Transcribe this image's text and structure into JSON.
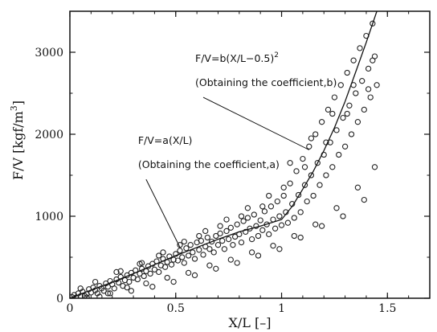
{
  "chart_data": {
    "type": "scatter",
    "title": "",
    "xlabel": "X/L  [–]",
    "ylabel": "F/V  [kgf/m",
    "ylabel_sup": "3",
    "ylabel_close": "]",
    "xlim": [
      0,
      1.7
    ],
    "ylim": [
      0,
      3500
    ],
    "x_ticks": [
      0,
      0.5,
      1,
      1.5
    ],
    "x_tick_labels": [
      "0",
      "0.5",
      "1",
      "1.5"
    ],
    "y_ticks": [
      0,
      1000,
      2000,
      3000
    ],
    "y_tick_labels": [
      "0",
      "1000",
      "2000",
      "3000"
    ],
    "grid": false,
    "marker": "open-circle",
    "annotations": [
      {
        "line1": "F/V=b(X/L−0.5)",
        "line1_sup": "2",
        "line2": "(Obtaining the coefficient,b)",
        "arrow_from": [
          0.63,
          2450
        ],
        "arrow_to": [
          1.13,
          1810
        ]
      },
      {
        "line1": "F/V=a(X/L)",
        "line2": "(Obtaining the coefficient,a)",
        "arrow_from": [
          0.36,
          1450
        ],
        "arrow_to": [
          0.52,
          620
        ]
      }
    ],
    "series": [
      {
        "type": "line",
        "points": [
          [
            0,
            0
          ],
          [
            0.1,
            100
          ],
          [
            0.2,
            195
          ],
          [
            0.3,
            300
          ],
          [
            0.4,
            410
          ],
          [
            0.5,
            520
          ],
          [
            0.6,
            620
          ],
          [
            0.7,
            720
          ],
          [
            0.8,
            810
          ],
          [
            0.9,
            880
          ],
          [
            1.0,
            960
          ],
          [
            1.05,
            1120
          ],
          [
            1.1,
            1330
          ],
          [
            1.15,
            1550
          ],
          [
            1.2,
            1800
          ],
          [
            1.25,
            2080
          ],
          [
            1.3,
            2400
          ],
          [
            1.35,
            2760
          ],
          [
            1.4,
            3120
          ],
          [
            1.45,
            3500
          ]
        ]
      },
      {
        "type": "scatter",
        "points": [
          [
            0.01,
            15
          ],
          [
            0.02,
            40
          ],
          [
            0.03,
            10
          ],
          [
            0.04,
            60
          ],
          [
            0.05,
            25
          ],
          [
            0.06,
            80
          ],
          [
            0.07,
            30
          ],
          [
            0.08,
            50
          ],
          [
            0.09,
            110
          ],
          [
            0.1,
            70
          ],
          [
            0.11,
            130
          ],
          [
            0.12,
            95
          ],
          [
            0.13,
            60
          ],
          [
            0.14,
            150
          ],
          [
            0.15,
            120
          ],
          [
            0.16,
            90
          ],
          [
            0.17,
            180
          ],
          [
            0.18,
            140
          ],
          [
            0.19,
            210
          ],
          [
            0.2,
            170
          ],
          [
            0.21,
            120
          ],
          [
            0.22,
            230
          ],
          [
            0.23,
            190
          ],
          [
            0.24,
            260
          ],
          [
            0.25,
            150
          ],
          [
            0.26,
            220
          ],
          [
            0.27,
            280
          ],
          [
            0.28,
            200
          ],
          [
            0.29,
            310
          ],
          [
            0.3,
            250
          ],
          [
            0.31,
            340
          ],
          [
            0.32,
            230
          ],
          [
            0.33,
            300
          ],
          [
            0.34,
            360
          ],
          [
            0.35,
            270
          ],
          [
            0.36,
            330
          ],
          [
            0.37,
            390
          ],
          [
            0.38,
            300
          ],
          [
            0.39,
            420
          ],
          [
            0.4,
            350
          ],
          [
            0.41,
            450
          ],
          [
            0.42,
            320
          ],
          [
            0.43,
            400
          ],
          [
            0.44,
            480
          ],
          [
            0.45,
            380
          ],
          [
            0.46,
            440
          ],
          [
            0.47,
            510
          ],
          [
            0.48,
            410
          ],
          [
            0.49,
            470
          ],
          [
            0.5,
            540
          ],
          [
            0.51,
            460
          ],
          [
            0.52,
            580
          ],
          [
            0.53,
            500
          ],
          [
            0.54,
            430
          ],
          [
            0.55,
            610
          ],
          [
            0.56,
            520
          ],
          [
            0.57,
            650
          ],
          [
            0.58,
            560
          ],
          [
            0.59,
            480
          ],
          [
            0.6,
            680
          ],
          [
            0.61,
            590
          ],
          [
            0.62,
            700
          ],
          [
            0.63,
            530
          ],
          [
            0.64,
            630
          ],
          [
            0.65,
            740
          ],
          [
            0.66,
            600
          ],
          [
            0.67,
            690
          ],
          [
            0.68,
            560
          ],
          [
            0.69,
            760
          ],
          [
            0.7,
            650
          ],
          [
            0.71,
            790
          ],
          [
            0.72,
            700
          ],
          [
            0.73,
            600
          ],
          [
            0.74,
            820
          ],
          [
            0.75,
            720
          ],
          [
            0.76,
            860
          ],
          [
            0.77,
            650
          ],
          [
            0.78,
            750
          ],
          [
            0.79,
            900
          ],
          [
            0.8,
            780
          ],
          [
            0.81,
            680
          ],
          [
            0.82,
            940
          ],
          [
            0.83,
            810
          ],
          [
            0.84,
            980
          ],
          [
            0.85,
            850
          ],
          [
            0.86,
            720
          ],
          [
            0.87,
            1020
          ],
          [
            0.88,
            880
          ],
          [
            0.89,
            760
          ],
          [
            0.9,
            950
          ],
          [
            0.91,
            830
          ],
          [
            0.92,
            1060
          ],
          [
            0.93,
            900
          ],
          [
            0.94,
            780
          ],
          [
            0.95,
            1120
          ],
          [
            0.96,
            960
          ],
          [
            0.97,
            850
          ],
          [
            0.98,
            1180
          ],
          [
            0.99,
            1000
          ],
          [
            1.0,
            890
          ],
          [
            1.01,
            1250
          ],
          [
            1.02,
            1050
          ],
          [
            1.03,
            920
          ],
          [
            1.04,
            1400
          ],
          [
            1.05,
            1150
          ],
          [
            1.06,
            980
          ],
          [
            1.07,
            1550
          ],
          [
            1.08,
            1260
          ],
          [
            1.09,
            1050
          ],
          [
            1.1,
            1700
          ],
          [
            1.11,
            1380
          ],
          [
            1.12,
            1180
          ],
          [
            1.13,
            1850
          ],
          [
            1.14,
            1500
          ],
          [
            1.15,
            1250
          ],
          [
            1.16,
            2000
          ],
          [
            1.17,
            1650
          ],
          [
            1.18,
            1380
          ],
          [
            1.19,
            2150
          ],
          [
            1.2,
            1750
          ],
          [
            1.21,
            1500
          ],
          [
            1.22,
            2300
          ],
          [
            1.23,
            1900
          ],
          [
            1.24,
            1600
          ],
          [
            1.25,
            2450
          ],
          [
            1.26,
            2050
          ],
          [
            1.27,
            1750
          ],
          [
            1.28,
            2600
          ],
          [
            1.29,
            2200
          ],
          [
            1.3,
            1850
          ],
          [
            1.31,
            2750
          ],
          [
            1.32,
            2350
          ],
          [
            1.33,
            2000
          ],
          [
            1.34,
            2900
          ],
          [
            1.35,
            2500
          ],
          [
            1.36,
            2150
          ],
          [
            1.37,
            3050
          ],
          [
            1.38,
            2650
          ],
          [
            1.39,
            2300
          ],
          [
            1.4,
            3200
          ],
          [
            1.41,
            2800
          ],
          [
            1.42,
            2450
          ],
          [
            1.43,
            3350
          ],
          [
            1.44,
            2950
          ],
          [
            1.45,
            2600
          ],
          [
            0.18,
            60
          ],
          [
            0.22,
            320
          ],
          [
            0.27,
            130
          ],
          [
            0.33,
            420
          ],
          [
            0.36,
            180
          ],
          [
            0.42,
            520
          ],
          [
            0.46,
            250
          ],
          [
            0.52,
            650
          ],
          [
            0.56,
            310
          ],
          [
            0.61,
            760
          ],
          [
            0.66,
            400
          ],
          [
            0.71,
            880
          ],
          [
            0.76,
            470
          ],
          [
            0.81,
            1000
          ],
          [
            0.86,
            560
          ],
          [
            0.91,
            1120
          ],
          [
            0.96,
            640
          ],
          [
            1.01,
            1350
          ],
          [
            1.06,
            760
          ],
          [
            1.11,
            1600
          ],
          [
            1.16,
            900
          ],
          [
            1.21,
            1900
          ],
          [
            1.26,
            1100
          ],
          [
            1.31,
            2250
          ],
          [
            1.36,
            1350
          ],
          [
            1.41,
            2550
          ],
          [
            1.44,
            1600
          ],
          [
            0.05,
            120
          ],
          [
            0.08,
            10
          ],
          [
            0.12,
            200
          ],
          [
            0.14,
            20
          ],
          [
            0.19,
            60
          ],
          [
            0.24,
            330
          ],
          [
            0.29,
            90
          ],
          [
            0.34,
            430
          ],
          [
            0.39,
            140
          ],
          [
            0.44,
            560
          ],
          [
            0.49,
            200
          ],
          [
            0.54,
            690
          ],
          [
            0.59,
            280
          ],
          [
            0.64,
            820
          ],
          [
            0.69,
            360
          ],
          [
            0.74,
            960
          ],
          [
            0.79,
            430
          ],
          [
            0.84,
            1100
          ],
          [
            0.89,
            520
          ],
          [
            0.94,
            1250
          ],
          [
            0.99,
            600
          ],
          [
            1.04,
            1650
          ],
          [
            1.09,
            740
          ],
          [
            1.14,
            1950
          ],
          [
            1.19,
            880
          ],
          [
            1.24,
            2250
          ],
          [
            1.29,
            1000
          ],
          [
            1.34,
            2600
          ],
          [
            1.39,
            1200
          ],
          [
            1.43,
            2900
          ]
        ]
      }
    ]
  }
}
